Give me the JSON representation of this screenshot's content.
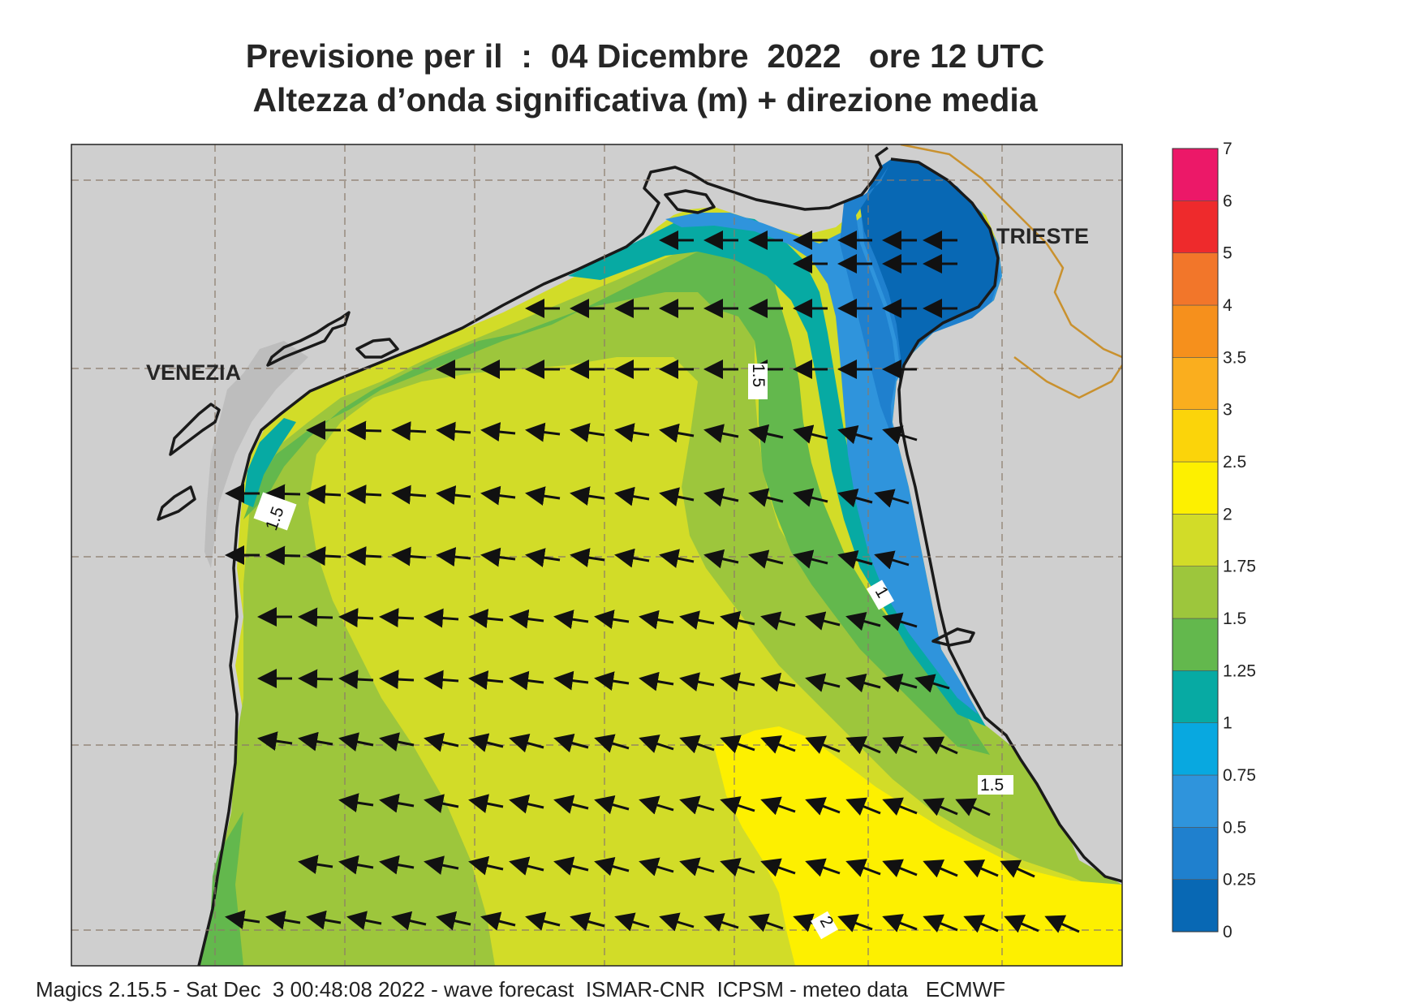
{
  "title_line1": "Previsione per il  :  04 Dicembre  2022   ore 12 UTC",
  "title_line2": "Altezza d’onda significativa (m) + direzione media",
  "footer": "Magics 2.15.5 - Sat Dec  3 00:48:08 2022 - wave forecast  ISMAR-CNR  ICPSM - meteo data   ECMWF",
  "cities": [
    "VENEZIA",
    "TRIESTE"
  ],
  "contour_labels": [
    "1.5",
    "1.5",
    "1",
    "1.5",
    "2"
  ],
  "legend": {
    "ticks": [
      "0",
      "0.25",
      "0.5",
      "0.75",
      "1",
      "1.25",
      "1.5",
      "1.75",
      "2",
      "2.5",
      "3",
      "3.5",
      "4",
      "5",
      "6",
      "7"
    ],
    "colors": [
      "#0868b4",
      "#1f80ce",
      "#2f94dc",
      "#08a8e0",
      "#07aaa3",
      "#63b84d",
      "#9dc63c",
      "#d2dc28",
      "#fdf000",
      "#fbd40a",
      "#faae1e",
      "#f6901c",
      "#f2762a",
      "#ee2a2c",
      "#ec1868"
    ]
  },
  "wave_field": {
    "mean_direction": "waves travelling toward the west / north-west (arrows point left)",
    "ranges_m": {
      "north_east_trieste_gulf": "0.25-0.75",
      "central_basin": "1.75-2",
      "south_east": "2-2.5"
    }
  }
}
